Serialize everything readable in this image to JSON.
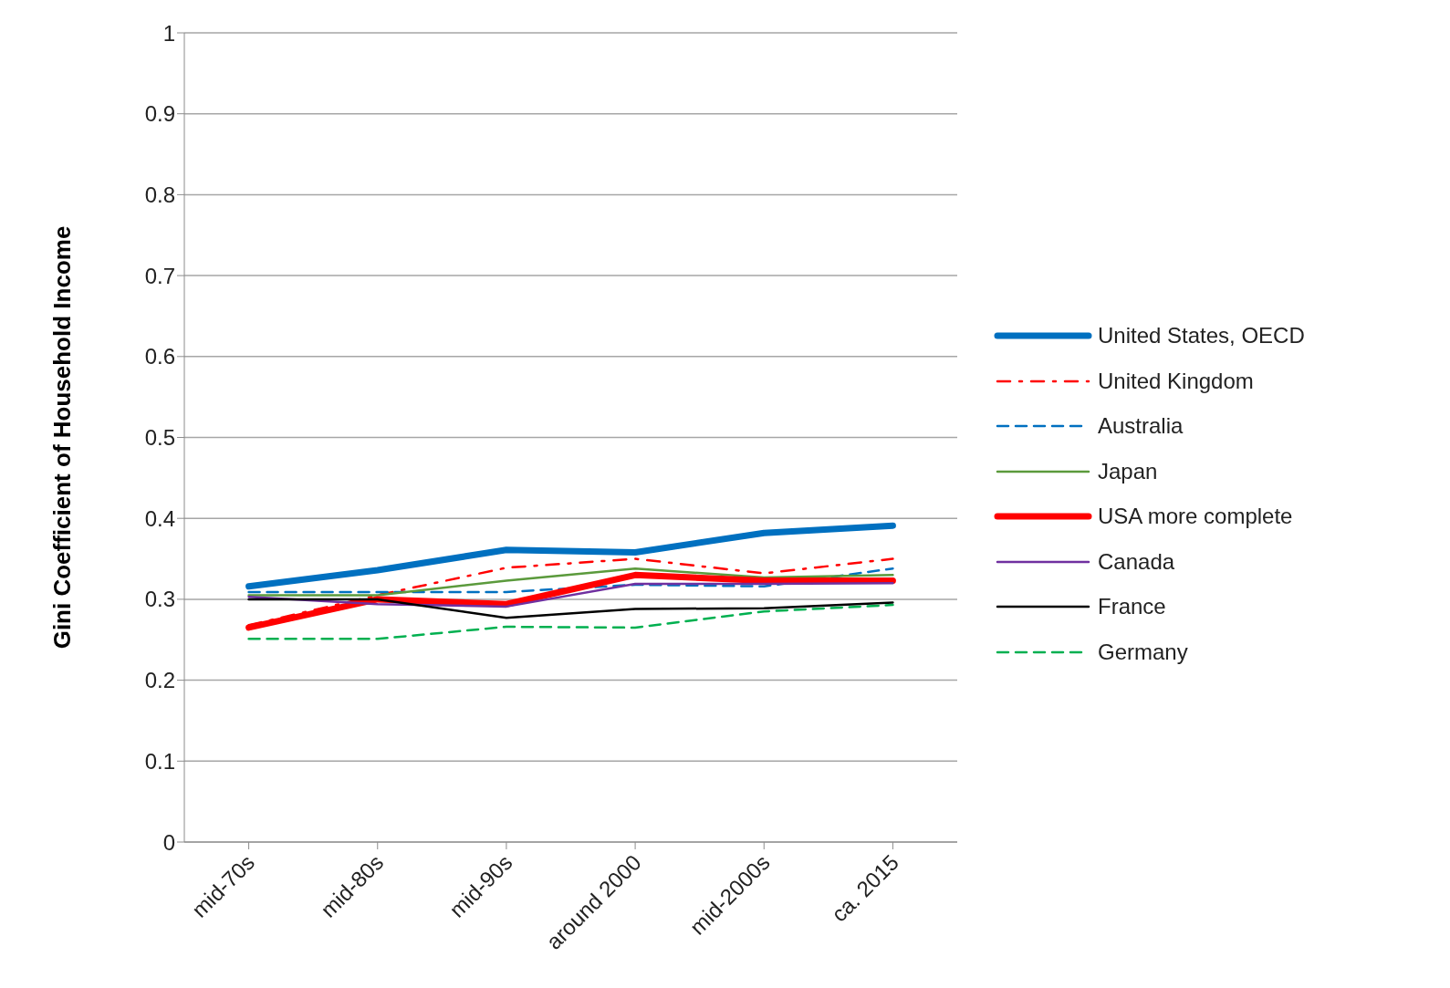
{
  "chart_data": {
    "type": "line",
    "ylabel": "Gini Coefficient of Household Income",
    "categories": [
      "mid-70s",
      "mid-80s",
      "mid-90s",
      "around 2000",
      "mid-2000s",
      "ca. 2015"
    ],
    "ylim": [
      0,
      1
    ],
    "yticks": [
      0,
      0.1,
      0.2,
      0.3,
      0.4,
      0.5,
      0.6,
      0.7,
      0.8,
      0.9,
      1
    ],
    "grid": "y",
    "legend": "right",
    "marker": "none",
    "series": [
      {
        "name": "United States, OECD",
        "color": "#0070c0",
        "line_style": "solid",
        "values": [
          0.316,
          0.336,
          0.361,
          0.358,
          0.382,
          0.391
        ]
      },
      {
        "name": "United Kingdom",
        "color": "#ff0000",
        "line_style": "dashdot",
        "values": [
          0.268,
          0.305,
          0.339,
          0.35,
          0.332,
          0.35
        ]
      },
      {
        "name": "Australia",
        "color": "#0070c0",
        "line_style": "dashed",
        "values": [
          0.309,
          0.309,
          0.309,
          0.318,
          0.316,
          0.338
        ]
      },
      {
        "name": "Japan",
        "color": "#5b9a3c",
        "line_style": "solid",
        "values": [
          0.305,
          0.305,
          0.323,
          0.338,
          0.327,
          0.33
        ]
      },
      {
        "name": "USA more complete",
        "color": "#ff0000",
        "line_style": "solid",
        "values": [
          0.265,
          0.3,
          0.294,
          0.33,
          0.323,
          0.323
        ]
      },
      {
        "name": "Canada",
        "color": "#7030a0",
        "line_style": "solid",
        "values": [
          0.303,
          0.294,
          0.291,
          0.319,
          0.319,
          0.32
        ]
      },
      {
        "name": "France",
        "color": "#000000",
        "line_style": "solid",
        "values": [
          0.3,
          0.3,
          0.277,
          0.288,
          0.289,
          0.296
        ]
      },
      {
        "name": "Germany",
        "color": "#00b050",
        "line_style": "dashed",
        "values": [
          0.251,
          0.251,
          0.266,
          0.265,
          0.285,
          0.293
        ]
      }
    ]
  }
}
